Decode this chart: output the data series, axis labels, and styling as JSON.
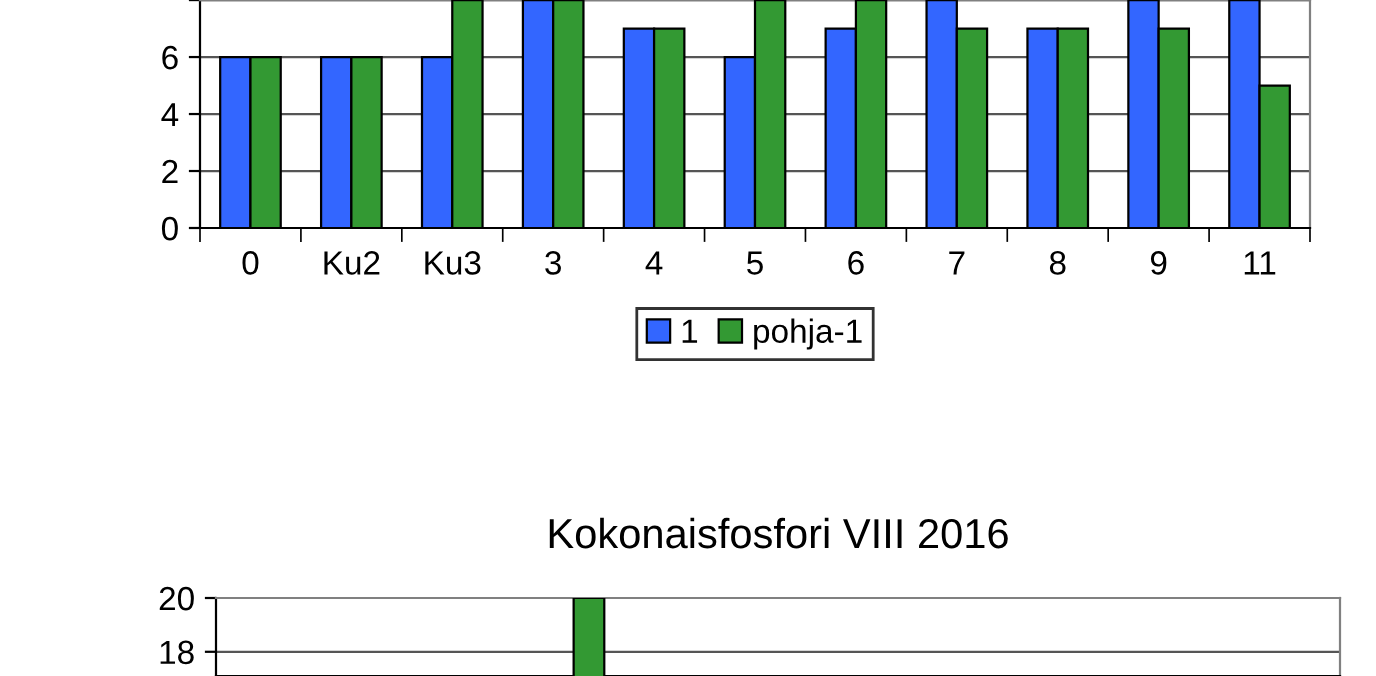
{
  "chart_data": [
    {
      "type": "bar",
      "categories": [
        "0",
        "Ku2",
        "Ku3",
        "3",
        "4",
        "5",
        "6",
        "7",
        "8",
        "9",
        "11"
      ],
      "series": [
        {
          "name": "1",
          "color": "#3366ff",
          "values": [
            6,
            6,
            6,
            8,
            7,
            6,
            7,
            8,
            7,
            8,
            8
          ]
        },
        {
          "name": "pohja-1",
          "color": "#339933",
          "values": [
            6,
            6,
            8,
            8,
            7,
            8,
            8,
            7,
            7,
            7,
            5
          ]
        }
      ],
      "ylim": [
        0,
        8
      ],
      "yticks": [
        0,
        2,
        4,
        6,
        {
          "value": 8,
          "label": null
        }
      ],
      "grid": "y",
      "legend": "bottom"
    },
    {
      "type": "bar",
      "title": "Kokonaisfosfori VIII 2016",
      "categories": [
        null,
        null,
        null,
        null,
        null,
        null,
        null,
        null,
        null,
        null,
        null
      ],
      "series": [
        {
          "color": "#3366ff",
          "values": [
            null,
            null,
            null,
            null,
            null,
            null,
            null,
            null,
            null,
            null,
            null
          ]
        },
        {
          "color": "#339933",
          "values": [
            null,
            null,
            null,
            20,
            null,
            null,
            null,
            null,
            null,
            null,
            null
          ]
        }
      ],
      "ylim": [
        17.1,
        20
      ],
      "yticks": [
        18,
        20
      ],
      "grid": "y",
      "tick_labels": "y"
    }
  ]
}
